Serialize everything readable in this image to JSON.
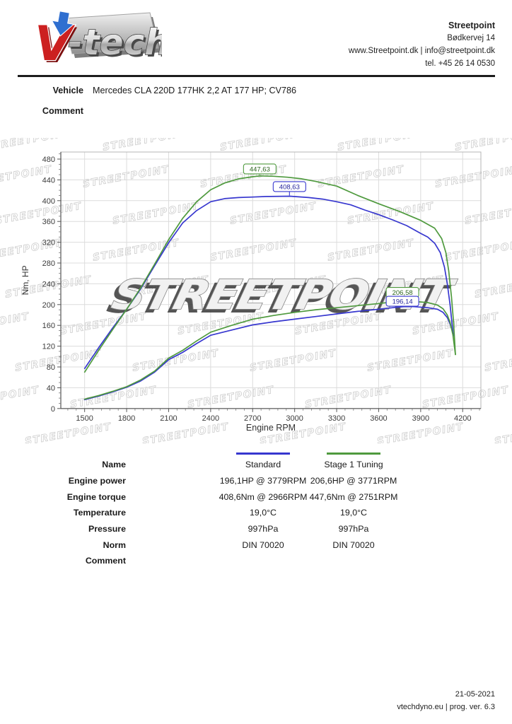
{
  "header": {
    "logo_text": "V-tech",
    "company": "Streetpoint",
    "address": "Bødkervej 14",
    "web_email": "www.Streetpoint.dk | info@streetpoint.dk",
    "phone": "tel. +45 26 14 0530"
  },
  "vehicle": {
    "label": "Vehicle",
    "value": "Mercedes CLA 220D 177HK 2,2 AT 177 HP; CV786"
  },
  "comment_label": "Comment",
  "chart_data": {
    "type": "line",
    "xlabel": "Engine RPM",
    "ylabel": "Nm, HP",
    "xlim": [
      1330,
      4330
    ],
    "ylim": [
      0,
      493.6
    ],
    "x_ticks": [
      1500,
      1800,
      2100,
      2400,
      2700,
      3000,
      3300,
      3600,
      3900,
      4200
    ],
    "y_ticks": [
      0,
      40,
      80,
      120,
      160,
      200,
      240,
      280,
      320,
      360,
      400,
      440,
      480
    ],
    "grid": true,
    "watermark": "STREETPOINT",
    "colors": {
      "standard": "#3737cf",
      "stage1": "#4f9a3e"
    },
    "series": [
      {
        "name": "Standard torque (Nm)",
        "color_key": "standard",
        "points": [
          [
            1500,
            77
          ],
          [
            1600,
            117
          ],
          [
            1700,
            155
          ],
          [
            1800,
            191
          ],
          [
            1900,
            230
          ],
          [
            2000,
            275
          ],
          [
            2100,
            319
          ],
          [
            2200,
            357
          ],
          [
            2300,
            381
          ],
          [
            2400,
            398
          ],
          [
            2500,
            404
          ],
          [
            2600,
            406
          ],
          [
            2700,
            407
          ],
          [
            2800,
            408
          ],
          [
            2966,
            408.6
          ],
          [
            3100,
            406
          ],
          [
            3200,
            403
          ],
          [
            3300,
            398
          ],
          [
            3400,
            392
          ],
          [
            3500,
            382
          ],
          [
            3600,
            373
          ],
          [
            3700,
            363
          ],
          [
            3800,
            352
          ],
          [
            3900,
            337
          ],
          [
            3950,
            330
          ],
          [
            4000,
            318
          ],
          [
            4040,
            300
          ],
          [
            4070,
            272
          ],
          [
            4090,
            240
          ],
          [
            4110,
            200
          ],
          [
            4125,
            160
          ],
          [
            4133,
            140
          ]
        ]
      },
      {
        "name": "Stage 1 torque (Nm)",
        "color_key": "stage1",
        "points": [
          [
            1500,
            70
          ],
          [
            1600,
            112
          ],
          [
            1700,
            152
          ],
          [
            1800,
            191
          ],
          [
            1900,
            232
          ],
          [
            2000,
            278
          ],
          [
            2100,
            325
          ],
          [
            2200,
            366
          ],
          [
            2300,
            398
          ],
          [
            2400,
            421
          ],
          [
            2500,
            434
          ],
          [
            2600,
            442
          ],
          [
            2700,
            446
          ],
          [
            2751,
            447.6
          ],
          [
            2850,
            447
          ],
          [
            2950,
            445
          ],
          [
            3050,
            442
          ],
          [
            3150,
            437
          ],
          [
            3300,
            428
          ],
          [
            3450,
            410
          ],
          [
            3600,
            394
          ],
          [
            3750,
            379
          ],
          [
            3900,
            362
          ],
          [
            4000,
            347
          ],
          [
            4050,
            327
          ],
          [
            4080,
            300
          ],
          [
            4100,
            265
          ],
          [
            4120,
            215
          ],
          [
            4135,
            165
          ],
          [
            4148,
            104
          ]
        ]
      },
      {
        "name": "Standard power (HP)",
        "color_key": "standard",
        "points": [
          [
            1500,
            17
          ],
          [
            1600,
            24
          ],
          [
            1700,
            32
          ],
          [
            1800,
            41
          ],
          [
            1900,
            53
          ],
          [
            2000,
            70
          ],
          [
            2100,
            94
          ],
          [
            2200,
            108
          ],
          [
            2300,
            125
          ],
          [
            2400,
            141
          ],
          [
            2550,
            151
          ],
          [
            2700,
            161
          ],
          [
            2850,
            167
          ],
          [
            3000,
            172
          ],
          [
            3150,
            177
          ],
          [
            3300,
            182
          ],
          [
            3450,
            187
          ],
          [
            3600,
            191
          ],
          [
            3700,
            194
          ],
          [
            3779,
            196.1
          ],
          [
            3850,
            196
          ],
          [
            3950,
            194
          ],
          [
            4020,
            191
          ],
          [
            4060,
            185
          ],
          [
            4090,
            175
          ],
          [
            4110,
            163
          ],
          [
            4125,
            150
          ],
          [
            4133,
            140
          ]
        ]
      },
      {
        "name": "Stage 1 power (HP)",
        "color_key": "stage1",
        "points": [
          [
            1500,
            18
          ],
          [
            1600,
            25
          ],
          [
            1700,
            33
          ],
          [
            1800,
            42
          ],
          [
            1900,
            55
          ],
          [
            2000,
            72
          ],
          [
            2100,
            97
          ],
          [
            2200,
            112
          ],
          [
            2300,
            130
          ],
          [
            2400,
            147
          ],
          [
            2550,
            160
          ],
          [
            2700,
            172
          ],
          [
            2850,
            179
          ],
          [
            3000,
            185
          ],
          [
            3150,
            190
          ],
          [
            3300,
            194
          ],
          [
            3450,
            198
          ],
          [
            3600,
            202
          ],
          [
            3700,
            205
          ],
          [
            3771,
            206.6
          ],
          [
            3850,
            206
          ],
          [
            3950,
            204
          ],
          [
            4020,
            199
          ],
          [
            4060,
            192
          ],
          [
            4090,
            180
          ],
          [
            4110,
            166
          ],
          [
            4130,
            142
          ],
          [
            4148,
            104
          ]
        ]
      }
    ],
    "annotations": [
      {
        "text": "447,63",
        "rpm": 2751,
        "box_val": 461,
        "pointer_val": 449,
        "color_key": "stage1"
      },
      {
        "text": "408,63",
        "rpm": 2963,
        "box_val": 427,
        "pointer_val": 410,
        "color_key": "standard"
      },
      {
        "text": "206,58",
        "rpm": 3770,
        "box_val": 223.5,
        "pointer_val": 207,
        "color_key": "stage1"
      },
      {
        "text": "196,14",
        "rpm": 3770,
        "box_val": 206.5,
        "pointer_val": 196.5,
        "color_key": "standard"
      }
    ]
  },
  "table": {
    "rows": [
      {
        "label": "Name",
        "std": "Standard",
        "stage": "Stage 1 Tuning"
      },
      {
        "label": "Engine power",
        "std": "196,1HP @ 3779RPM",
        "stage": "206,6HP @ 3771RPM"
      },
      {
        "label": "Engine torque",
        "std": "408,6Nm @ 2966RPM",
        "stage": "447,6Nm @ 2751RPM"
      },
      {
        "label": "Temperature",
        "std": "19,0°C",
        "stage": "19,0°C"
      },
      {
        "label": "Pressure",
        "std": "997hPa",
        "stage": "997hPa"
      },
      {
        "label": "Norm",
        "std": "DIN 70020",
        "stage": "DIN 70020"
      },
      {
        "label": "Comment",
        "std": "",
        "stage": ""
      }
    ]
  },
  "footer": {
    "date": "21-05-2021",
    "program": "vtechdyno.eu | prog. ver. 6.3"
  }
}
